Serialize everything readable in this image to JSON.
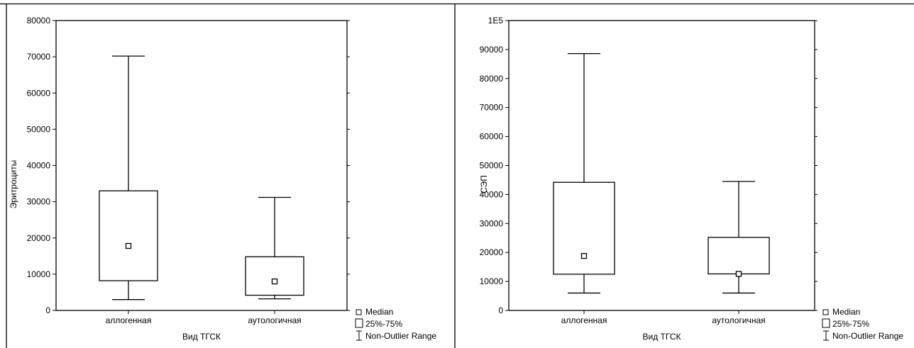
{
  "chart_data": [
    {
      "type": "box",
      "title": "",
      "xlabel": "Вид ТГСК",
      "ylabel": "Эритроциты",
      "ylim": [
        0,
        80000
      ],
      "yticks": [
        0,
        10000,
        20000,
        30000,
        40000,
        50000,
        60000,
        70000,
        80000
      ],
      "ytick_labels": [
        "0",
        "10000",
        "20000",
        "30000",
        "40000",
        "50000",
        "60000",
        "70000",
        "80000"
      ],
      "categories": [
        "аллогенная",
        "аутологичная"
      ],
      "boxes": [
        {
          "min": 3000,
          "q1": 8200,
          "median": 17800,
          "q3": 33000,
          "max": 70200
        },
        {
          "min": 3200,
          "q1": 4200,
          "median": 8000,
          "q3": 14800,
          "max": 31200
        }
      ],
      "legend": [
        "Median",
        "25%-75%",
        "Non-Outlier Range"
      ],
      "legend_position": "bottom-right"
    },
    {
      "type": "box",
      "title": "",
      "xlabel": "Вид ТГСК",
      "ylabel": "СЭП",
      "ylim": [
        0,
        100000
      ],
      "yticks": [
        0,
        10000,
        20000,
        30000,
        40000,
        50000,
        60000,
        70000,
        80000,
        90000,
        100000
      ],
      "ytick_labels": [
        "0",
        "10000",
        "20000",
        "30000",
        "40000",
        "50000",
        "60000",
        "70000",
        "80000",
        "90000",
        "1E5"
      ],
      "categories": [
        "аллогенная",
        "аутологичная"
      ],
      "boxes": [
        {
          "min": 6000,
          "q1": 12500,
          "median": 18800,
          "q3": 44200,
          "max": 88600
        },
        {
          "min": 6000,
          "q1": 12600,
          "median": 12600,
          "q3": 25200,
          "max": 44500
        }
      ],
      "legend": [
        "Median",
        "25%-75%",
        "Non-Outlier Range"
      ],
      "legend_position": "bottom-right"
    }
  ]
}
